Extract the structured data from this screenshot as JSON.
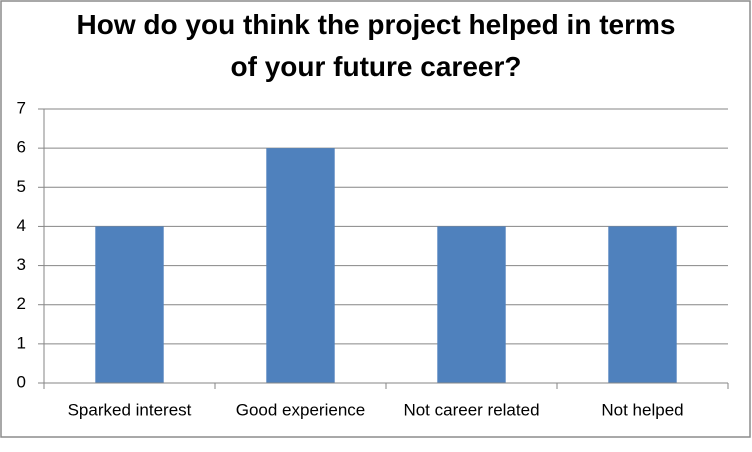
{
  "chart_data": {
    "type": "bar",
    "title": "How do you think the project helped in terms of your future career?",
    "categories": [
      "Sparked interest",
      "Good experience",
      "Not career related",
      "Not helped"
    ],
    "values": [
      4,
      6,
      4,
      4
    ],
    "color": "#4f81bd",
    "ylim": [
      0,
      7
    ],
    "yticks": [
      0,
      1,
      2,
      3,
      4,
      5,
      6,
      7
    ],
    "grid": true
  }
}
